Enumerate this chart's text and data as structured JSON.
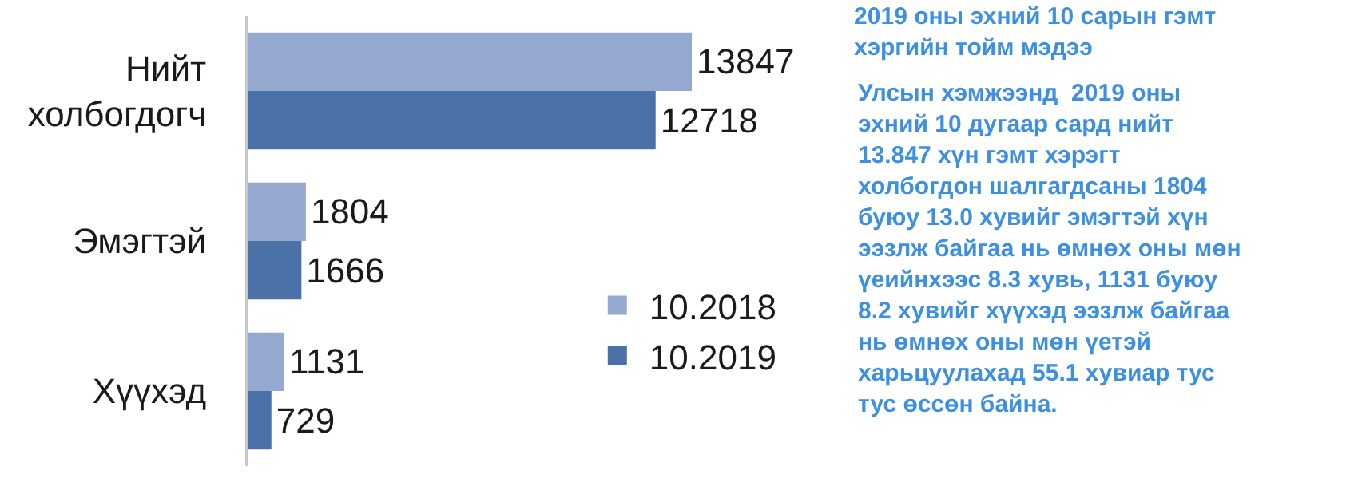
{
  "chart_data": {
    "type": "bar",
    "orientation": "horizontal",
    "title": "2019 оны эхний 10 сарын гэмт\nхэргийн тойм мэдээ",
    "annotations": [
      "Улсын хэмжээнд  2019 оны\nэхний 10 дугаар сард нийт\n13.847 хүн гэмт хэрэгт\nхолбогдон шалгагдсаны 1804\nбуюу 13.0 хувийг эмэгтэй хүн\nээзлж байгаа нь өмнөх оны мөн\nүеийнхээс 8.3 хувь, 1131 буюу\n8.2 хувийг хүүхэд ээзлж байгаа\nнь өмнөх оны мөн үетэй\nхарьцуулахад 55.1 хувиар тус\nтус өссөн байна."
    ],
    "categories": [
      "Нийт\nхолбогдогч",
      "Эмэгтэй",
      "Хүүхэд"
    ],
    "series": [
      {
        "name": "10.2018",
        "color": "#95a9d0",
        "values": [
          13847,
          1804,
          1131
        ]
      },
      {
        "name": "10.2019",
        "color": "#4a71a8",
        "values": [
          12718,
          1666,
          729
        ]
      }
    ],
    "data_labels": true,
    "legend": "right"
  }
}
